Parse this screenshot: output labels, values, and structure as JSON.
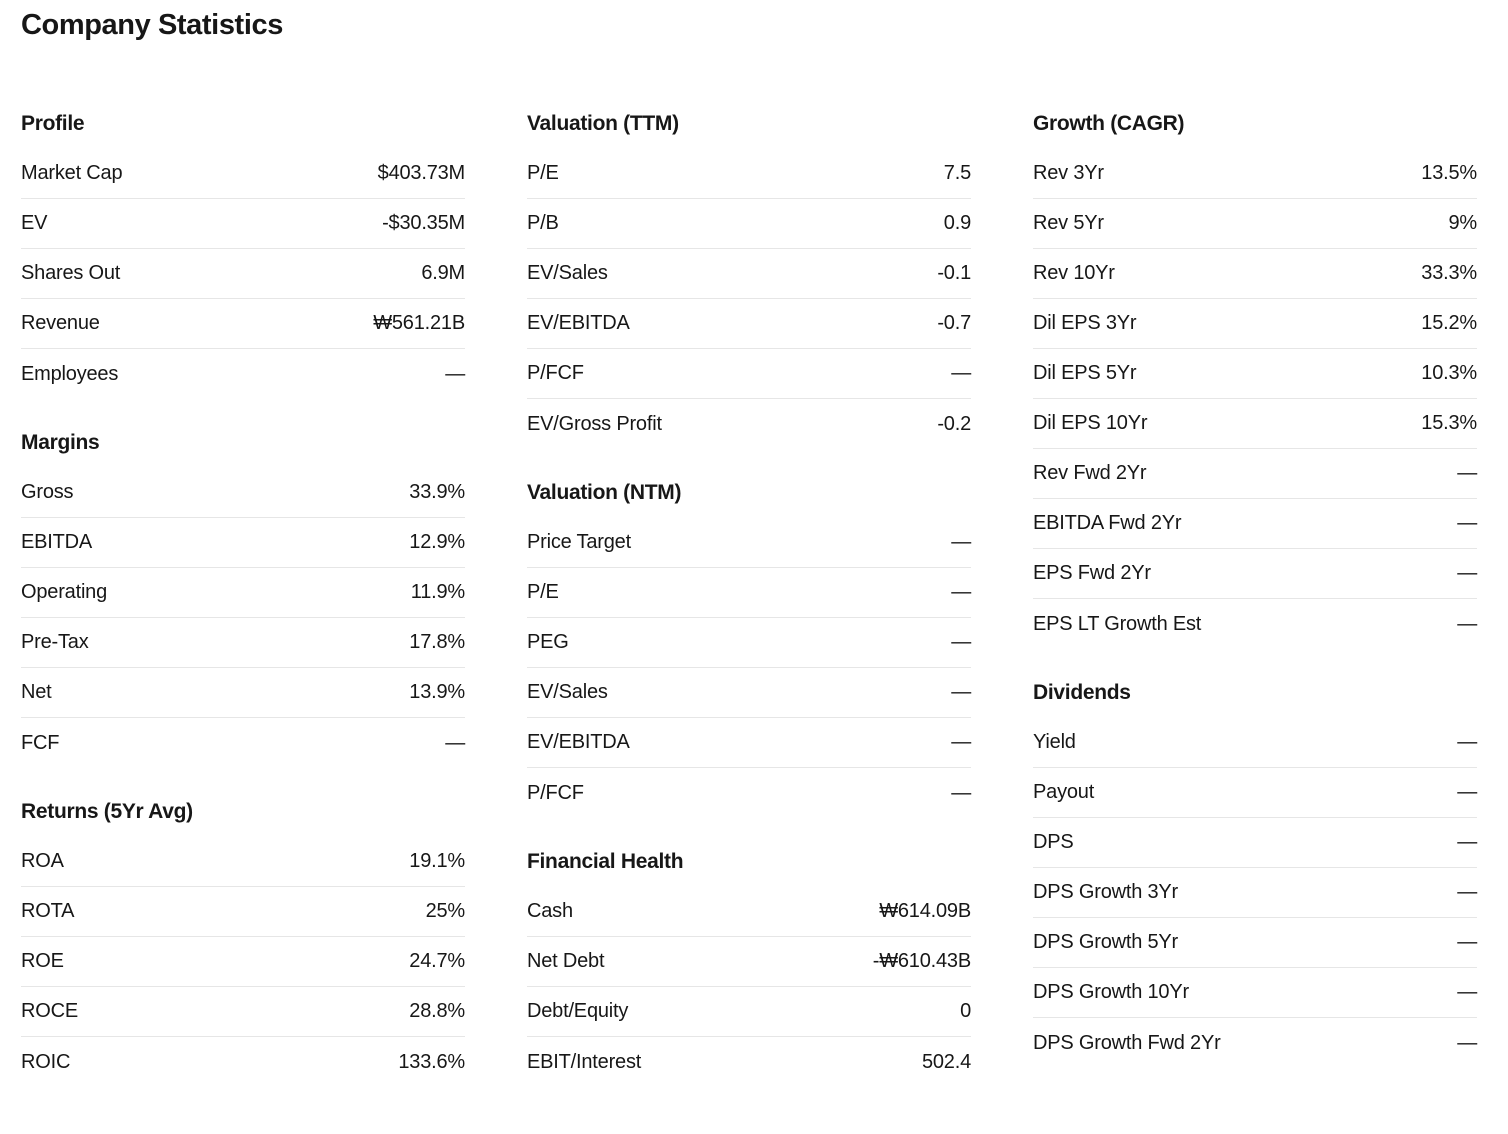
{
  "title": "Company Statistics",
  "columns": [
    {
      "sections": [
        {
          "title": "Profile",
          "rows": [
            {
              "label": "Market Cap",
              "value": "$403.73M"
            },
            {
              "label": "EV",
              "value": "-$30.35M"
            },
            {
              "label": "Shares Out",
              "value": "6.9M"
            },
            {
              "label": "Revenue",
              "value": "₩561.21B"
            },
            {
              "label": "Employees",
              "value": "—"
            }
          ]
        },
        {
          "title": "Margins",
          "rows": [
            {
              "label": "Gross",
              "value": "33.9%"
            },
            {
              "label": "EBITDA",
              "value": "12.9%"
            },
            {
              "label": "Operating",
              "value": "11.9%"
            },
            {
              "label": "Pre-Tax",
              "value": "17.8%"
            },
            {
              "label": "Net",
              "value": "13.9%"
            },
            {
              "label": "FCF",
              "value": "—"
            }
          ]
        },
        {
          "title": "Returns (5Yr Avg)",
          "rows": [
            {
              "label": "ROA",
              "value": "19.1%"
            },
            {
              "label": "ROTA",
              "value": "25%"
            },
            {
              "label": "ROE",
              "value": "24.7%"
            },
            {
              "label": "ROCE",
              "value": "28.8%"
            },
            {
              "label": "ROIC",
              "value": "133.6%"
            }
          ]
        }
      ]
    },
    {
      "sections": [
        {
          "title": "Valuation (TTM)",
          "rows": [
            {
              "label": "P/E",
              "value": "7.5"
            },
            {
              "label": "P/B",
              "value": "0.9"
            },
            {
              "label": "EV/Sales",
              "value": "-0.1"
            },
            {
              "label": "EV/EBITDA",
              "value": "-0.7"
            },
            {
              "label": "P/FCF",
              "value": "—"
            },
            {
              "label": "EV/Gross Profit",
              "value": "-0.2"
            }
          ]
        },
        {
          "title": "Valuation (NTM)",
          "rows": [
            {
              "label": "Price Target",
              "value": "—"
            },
            {
              "label": "P/E",
              "value": "—"
            },
            {
              "label": "PEG",
              "value": "—"
            },
            {
              "label": "EV/Sales",
              "value": "—"
            },
            {
              "label": "EV/EBITDA",
              "value": "—"
            },
            {
              "label": "P/FCF",
              "value": "—"
            }
          ]
        },
        {
          "title": "Financial Health",
          "rows": [
            {
              "label": "Cash",
              "value": "₩614.09B"
            },
            {
              "label": "Net Debt",
              "value": "-₩610.43B"
            },
            {
              "label": "Debt/Equity",
              "value": "0"
            },
            {
              "label": "EBIT/Interest",
              "value": "502.4"
            }
          ]
        }
      ]
    },
    {
      "sections": [
        {
          "title": "Growth (CAGR)",
          "rows": [
            {
              "label": "Rev 3Yr",
              "value": "13.5%"
            },
            {
              "label": "Rev 5Yr",
              "value": "9%"
            },
            {
              "label": "Rev 10Yr",
              "value": "33.3%"
            },
            {
              "label": "Dil EPS 3Yr",
              "value": "15.2%"
            },
            {
              "label": "Dil EPS 5Yr",
              "value": "10.3%"
            },
            {
              "label": "Dil EPS 10Yr",
              "value": "15.3%"
            },
            {
              "label": "Rev Fwd 2Yr",
              "value": "—"
            },
            {
              "label": "EBITDA Fwd 2Yr",
              "value": "—"
            },
            {
              "label": "EPS Fwd 2Yr",
              "value": "—"
            },
            {
              "label": "EPS LT Growth Est",
              "value": "—"
            }
          ]
        },
        {
          "title": "Dividends",
          "rows": [
            {
              "label": "Yield",
              "value": "—"
            },
            {
              "label": "Payout",
              "value": "—"
            },
            {
              "label": "DPS",
              "value": "—"
            },
            {
              "label": "DPS Growth 3Yr",
              "value": "—"
            },
            {
              "label": "DPS Growth 5Yr",
              "value": "—"
            },
            {
              "label": "DPS Growth 10Yr",
              "value": "—"
            },
            {
              "label": "DPS Growth Fwd 2Yr",
              "value": "—"
            }
          ]
        }
      ]
    }
  ]
}
